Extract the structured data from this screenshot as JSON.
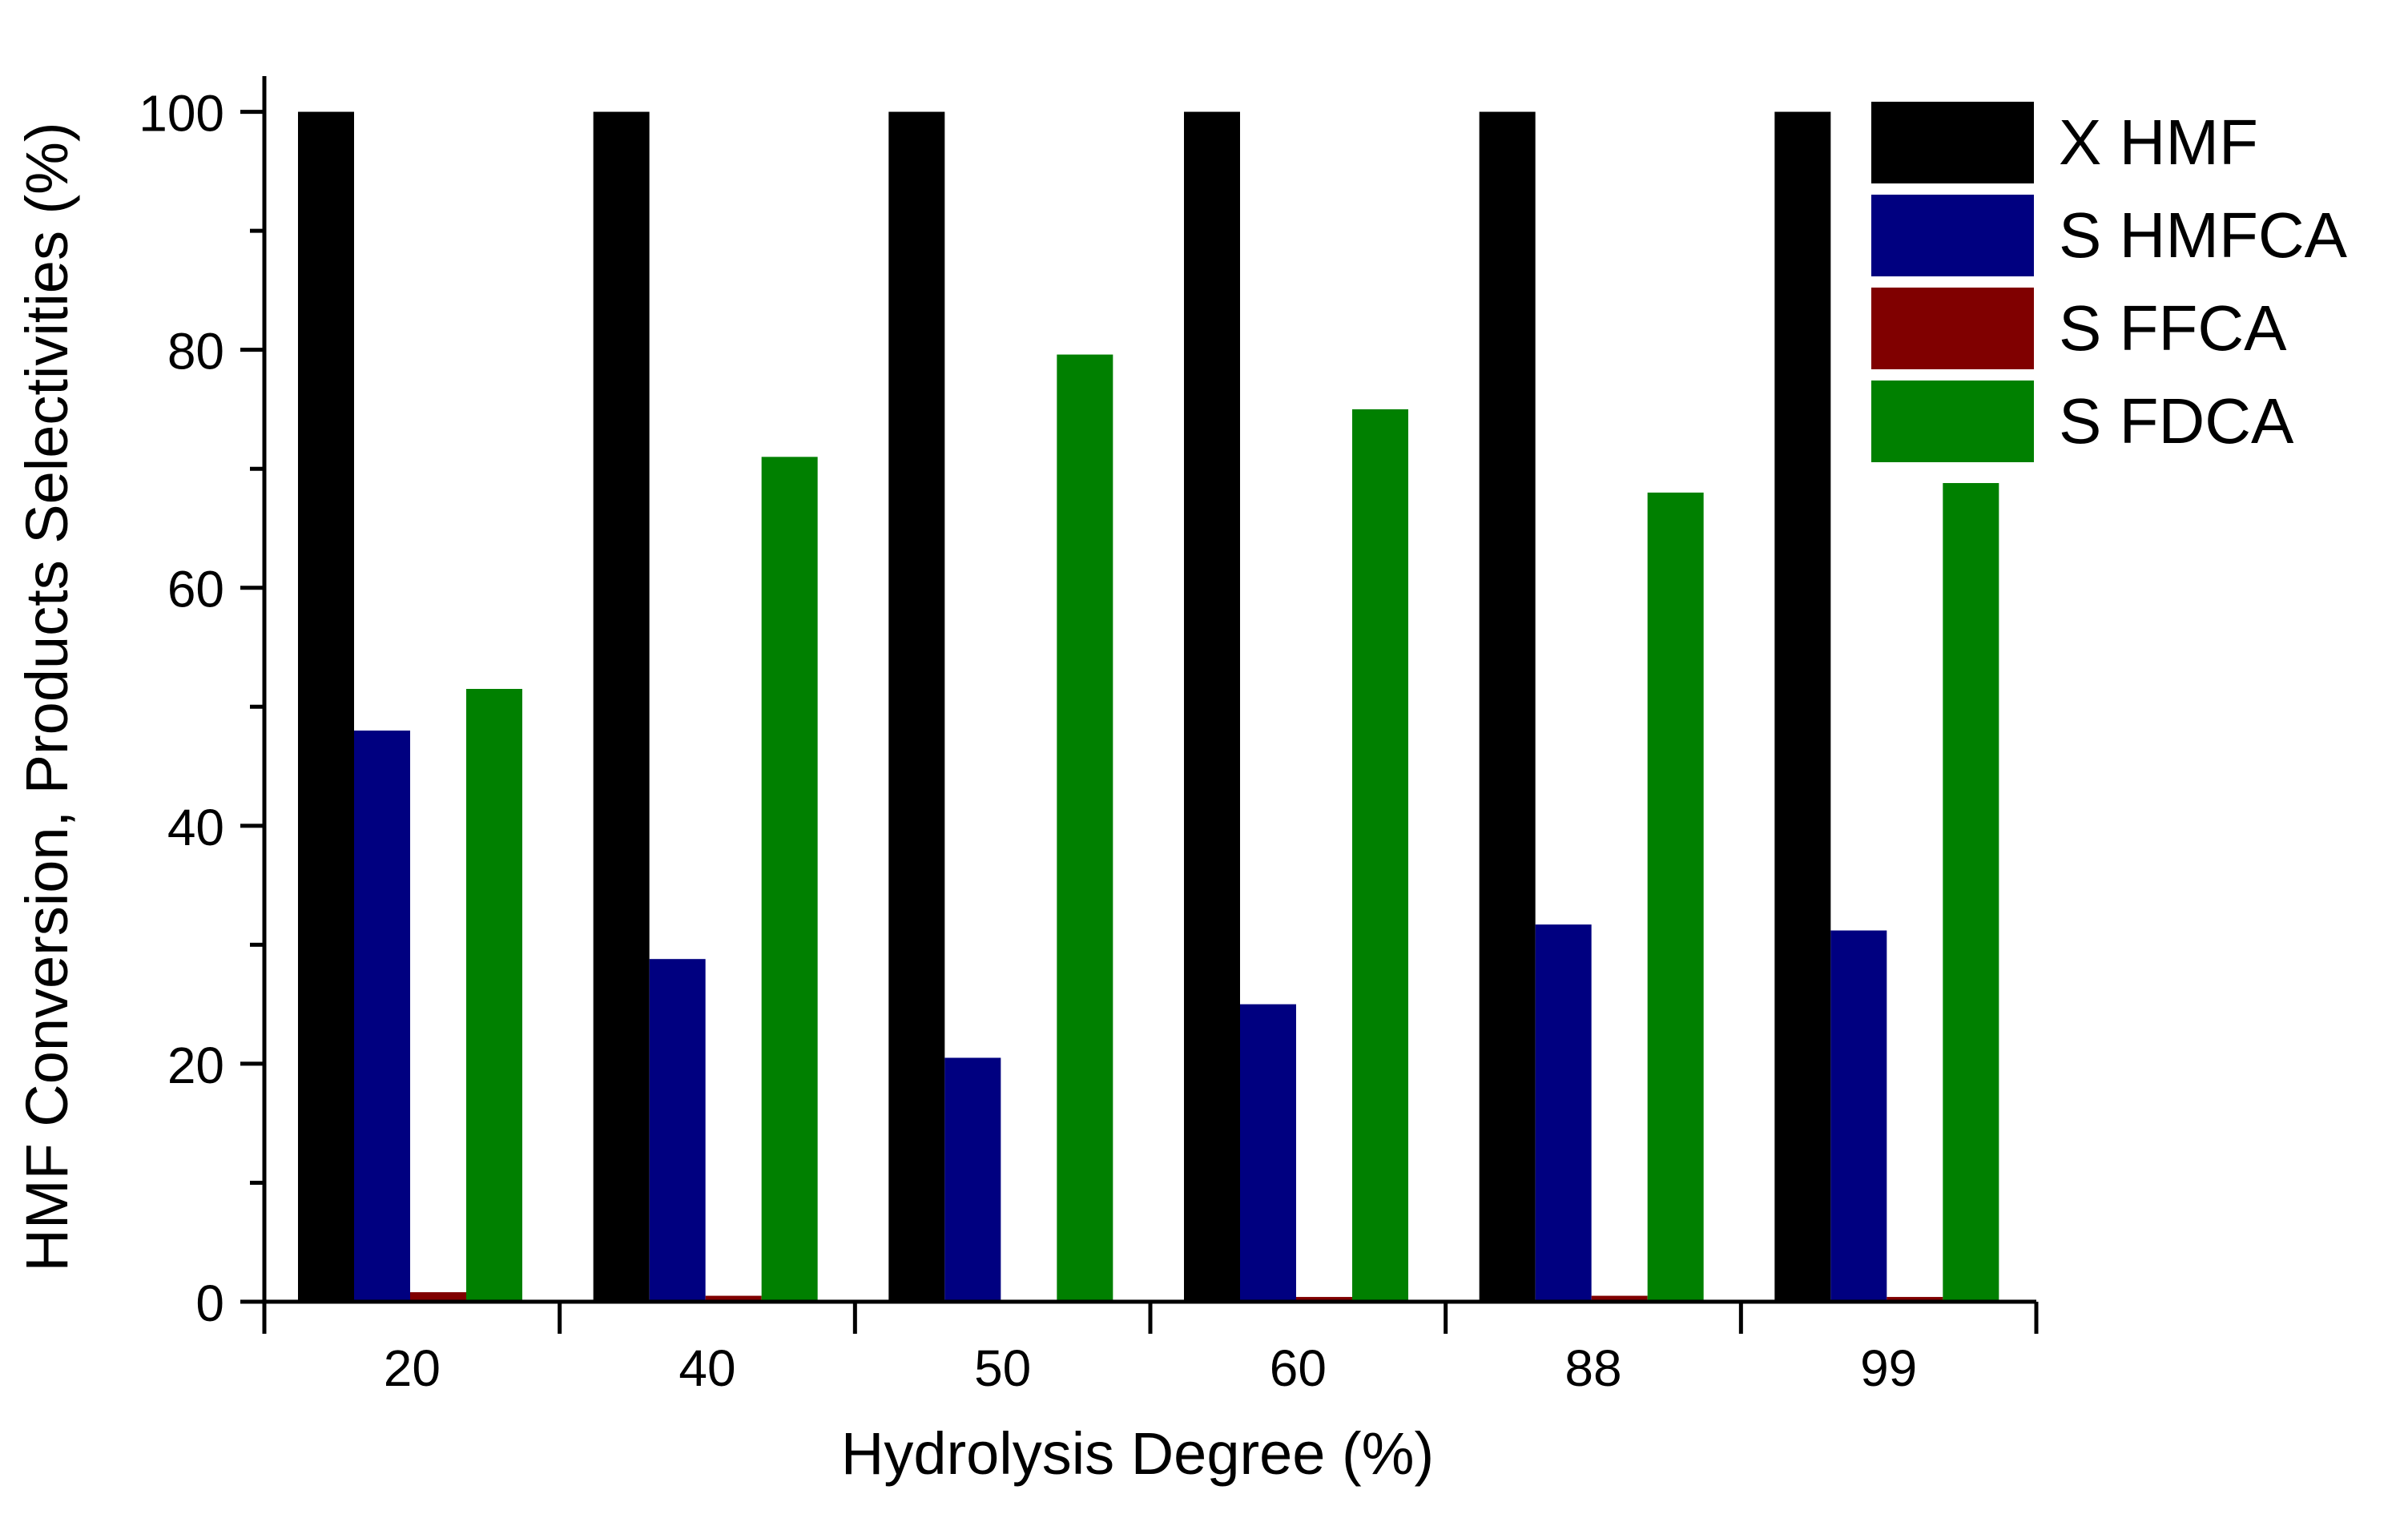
{
  "chart_data": {
    "type": "bar",
    "title": "",
    "xlabel": "Hydrolysis Degree (%)",
    "ylabel": "HMF Conversion, Products Selectivities (%)",
    "ylim": [
      0,
      103
    ],
    "yticks": [
      0,
      20,
      40,
      60,
      80,
      100
    ],
    "categories": [
      "20",
      "40",
      "50",
      "60",
      "88",
      "99"
    ],
    "legend_position": "top-right",
    "series": [
      {
        "name": "X HMF",
        "color": "#000000",
        "values": [
          100,
          100,
          100,
          100,
          100,
          100
        ]
      },
      {
        "name": "S HMFCA",
        "color": "#000080",
        "values": [
          48,
          28.8,
          20.5,
          25,
          31.7,
          31.2
        ]
      },
      {
        "name": "S FFCA",
        "color": "#800000",
        "values": [
          0.8,
          0.5,
          0,
          0.4,
          0.5,
          0.4
        ]
      },
      {
        "name": "S FDCA",
        "color": "#008000",
        "values": [
          51.5,
          71,
          79.6,
          75,
          68,
          68.8
        ]
      }
    ]
  }
}
